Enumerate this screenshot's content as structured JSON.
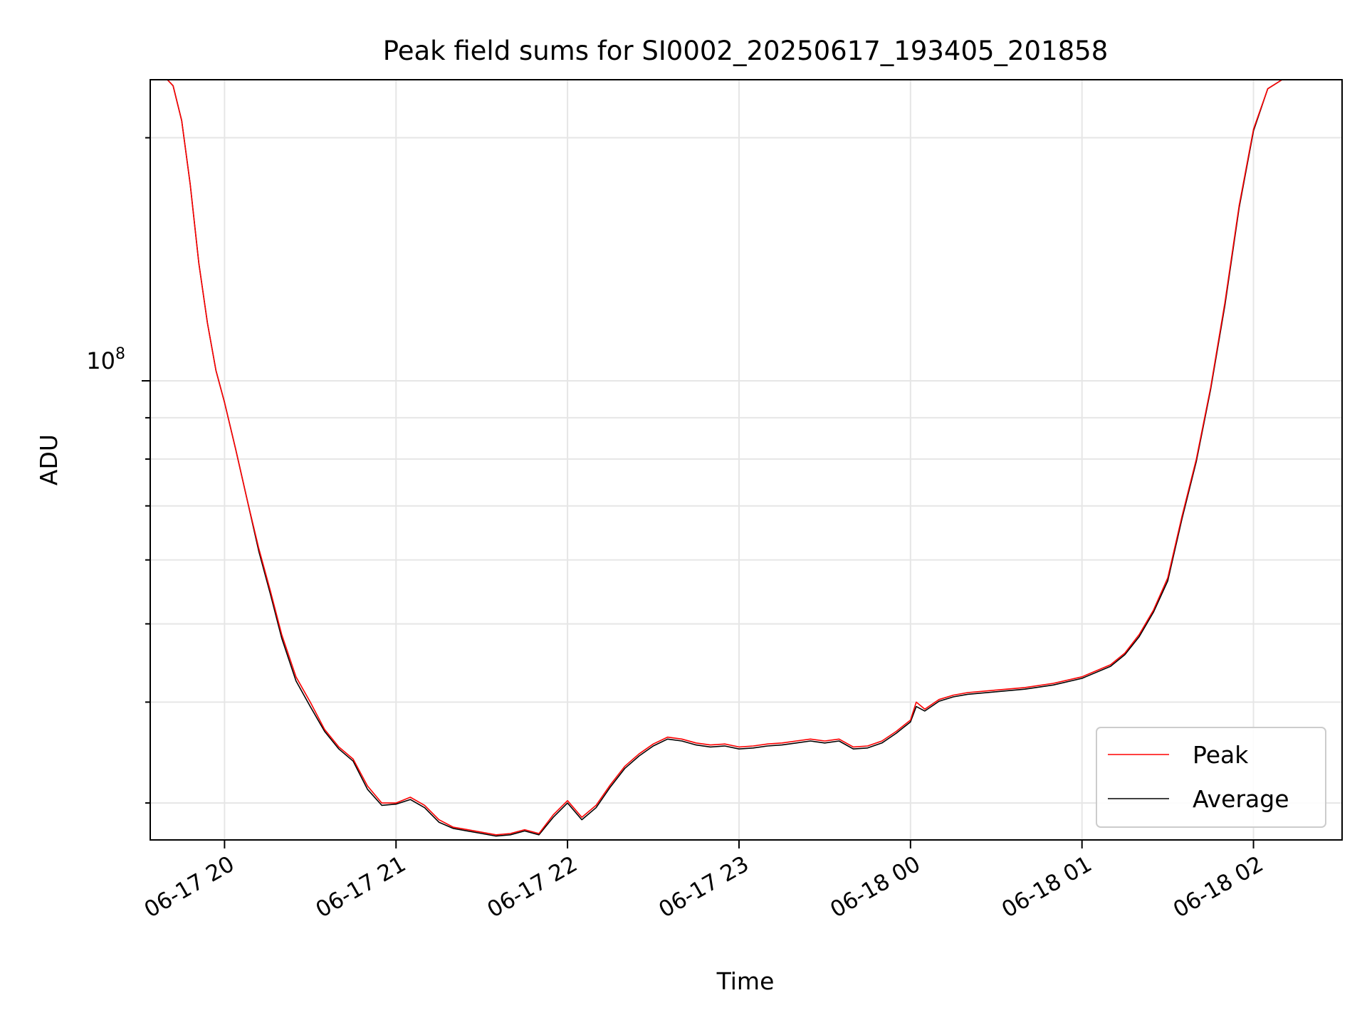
{
  "chart_data": {
    "type": "line",
    "title": "Peak field sums for SI0002_20250617_193405_201858",
    "xlabel": "Time",
    "ylabel": "ADU",
    "y_scale": "log",
    "y_tick_label": {
      "base": "10",
      "exp": "8"
    },
    "x_tick_labels": [
      "06-17 20",
      "06-17 21",
      "06-17 22",
      "06-17 23",
      "06-18 00",
      "06-18 01",
      "06-18 02"
    ],
    "x_tick_times": [
      "2025-06-17T20:00",
      "2025-06-17T21:00",
      "2025-06-17T22:00",
      "2025-06-17T23:00",
      "2025-06-18T00:00",
      "2025-06-18T01:00",
      "2025-06-18T02:00"
    ],
    "xlim": [
      "2025-06-17T19:34",
      "2025-06-18T02:31"
    ],
    "ylim": [
      27000000,
      236000000
    ],
    "grid": true,
    "legend_position": "lower right",
    "series": [
      {
        "name": "Peak",
        "color": "#ff0000",
        "points": [
          [
            "2025-06-17T19:34",
            236000000
          ],
          [
            "2025-06-17T19:40",
            236000000
          ],
          [
            "2025-06-17T19:42",
            232000000
          ],
          [
            "2025-06-17T19:45",
            210000000
          ],
          [
            "2025-06-17T19:48",
            175000000
          ],
          [
            "2025-06-17T19:51",
            140000000
          ],
          [
            "2025-06-17T19:54",
            118000000
          ],
          [
            "2025-06-17T19:57",
            103000000
          ],
          [
            "2025-06-17T20:00",
            94000000
          ],
          [
            "2025-06-17T20:04",
            82000000
          ],
          [
            "2025-06-17T20:08",
            71000000
          ],
          [
            "2025-06-17T20:12",
            62000000
          ],
          [
            "2025-06-17T20:16",
            55000000
          ],
          [
            "2025-06-17T20:20",
            48500000
          ],
          [
            "2025-06-17T20:25",
            43000000
          ],
          [
            "2025-06-17T20:30",
            40000000
          ],
          [
            "2025-06-17T20:35",
            37000000
          ],
          [
            "2025-06-17T20:40",
            35200000
          ],
          [
            "2025-06-17T20:45",
            34000000
          ],
          [
            "2025-06-17T20:50",
            31500000
          ],
          [
            "2025-06-17T20:55",
            30000000
          ],
          [
            "2025-06-17T21:00",
            30000000
          ],
          [
            "2025-06-17T21:05",
            30500000
          ],
          [
            "2025-06-17T21:10",
            29800000
          ],
          [
            "2025-06-17T21:15",
            28600000
          ],
          [
            "2025-06-17T21:20",
            28000000
          ],
          [
            "2025-06-17T21:25",
            27800000
          ],
          [
            "2025-06-17T21:30",
            27600000
          ],
          [
            "2025-06-17T21:35",
            27400000
          ],
          [
            "2025-06-17T21:40",
            27500000
          ],
          [
            "2025-06-17T21:45",
            27800000
          ],
          [
            "2025-06-17T21:50",
            27500000
          ],
          [
            "2025-06-17T21:55",
            29000000
          ],
          [
            "2025-06-17T22:00",
            30200000
          ],
          [
            "2025-06-17T22:05",
            28800000
          ],
          [
            "2025-06-17T22:10",
            29800000
          ],
          [
            "2025-06-17T22:15",
            31600000
          ],
          [
            "2025-06-17T22:20",
            33300000
          ],
          [
            "2025-06-17T22:25",
            34500000
          ],
          [
            "2025-06-17T22:30",
            35500000
          ],
          [
            "2025-06-17T22:35",
            36200000
          ],
          [
            "2025-06-17T22:40",
            36000000
          ],
          [
            "2025-06-17T22:45",
            35600000
          ],
          [
            "2025-06-17T22:50",
            35400000
          ],
          [
            "2025-06-17T22:55",
            35500000
          ],
          [
            "2025-06-17T23:00",
            35200000
          ],
          [
            "2025-06-17T23:05",
            35300000
          ],
          [
            "2025-06-17T23:10",
            35500000
          ],
          [
            "2025-06-17T23:15",
            35600000
          ],
          [
            "2025-06-17T23:20",
            35800000
          ],
          [
            "2025-06-17T23:25",
            36000000
          ],
          [
            "2025-06-17T23:30",
            35800000
          ],
          [
            "2025-06-17T23:35",
            36000000
          ],
          [
            "2025-06-17T23:40",
            35200000
          ],
          [
            "2025-06-17T23:45",
            35300000
          ],
          [
            "2025-06-17T23:50",
            35800000
          ],
          [
            "2025-06-17T23:55",
            36800000
          ],
          [
            "2025-06-18T00:00",
            38000000
          ],
          [
            "2025-06-18T00:02",
            40000000
          ],
          [
            "2025-06-18T00:05",
            39200000
          ],
          [
            "2025-06-18T00:10",
            40300000
          ],
          [
            "2025-06-18T00:15",
            40800000
          ],
          [
            "2025-06-18T00:20",
            41100000
          ],
          [
            "2025-06-18T00:30",
            41400000
          ],
          [
            "2025-06-18T00:40",
            41700000
          ],
          [
            "2025-06-18T00:50",
            42200000
          ],
          [
            "2025-06-18T01:00",
            43000000
          ],
          [
            "2025-06-18T01:10",
            44500000
          ],
          [
            "2025-06-18T01:15",
            46000000
          ],
          [
            "2025-06-18T01:20",
            48500000
          ],
          [
            "2025-06-18T01:25",
            52000000
          ],
          [
            "2025-06-18T01:30",
            57000000
          ],
          [
            "2025-06-18T01:35",
            68000000
          ],
          [
            "2025-06-18T01:40",
            80000000
          ],
          [
            "2025-06-18T01:45",
            98000000
          ],
          [
            "2025-06-18T01:50",
            125000000
          ],
          [
            "2025-06-18T01:55",
            165000000
          ],
          [
            "2025-06-18T02:00",
            205000000
          ],
          [
            "2025-06-18T02:05",
            230000000
          ],
          [
            "2025-06-18T02:10",
            236000000
          ],
          [
            "2025-06-18T02:31",
            236000000
          ]
        ]
      },
      {
        "name": "Average",
        "color": "#000000",
        "points": [
          [
            "2025-06-17T19:34",
            236000000
          ],
          [
            "2025-06-17T19:40",
            236000000
          ],
          [
            "2025-06-17T19:42",
            232000000
          ],
          [
            "2025-06-17T19:45",
            210000000
          ],
          [
            "2025-06-17T19:48",
            175000000
          ],
          [
            "2025-06-17T19:51",
            140000000
          ],
          [
            "2025-06-17T19:54",
            118000000
          ],
          [
            "2025-06-17T19:57",
            103000000
          ],
          [
            "2025-06-17T20:00",
            94000000
          ],
          [
            "2025-06-17T20:04",
            82000000
          ],
          [
            "2025-06-17T20:08",
            71000000
          ],
          [
            "2025-06-17T20:12",
            61500000
          ],
          [
            "2025-06-17T20:16",
            54500000
          ],
          [
            "2025-06-17T20:20",
            48000000
          ],
          [
            "2025-06-17T20:25",
            42500000
          ],
          [
            "2025-06-17T20:30",
            39500000
          ],
          [
            "2025-06-17T20:35",
            36800000
          ],
          [
            "2025-06-17T20:40",
            35000000
          ],
          [
            "2025-06-17T20:45",
            33800000
          ],
          [
            "2025-06-17T20:50",
            31200000
          ],
          [
            "2025-06-17T20:55",
            29800000
          ],
          [
            "2025-06-17T21:00",
            29900000
          ],
          [
            "2025-06-17T21:05",
            30300000
          ],
          [
            "2025-06-17T21:10",
            29600000
          ],
          [
            "2025-06-17T21:15",
            28400000
          ],
          [
            "2025-06-17T21:20",
            27900000
          ],
          [
            "2025-06-17T21:25",
            27700000
          ],
          [
            "2025-06-17T21:30",
            27500000
          ],
          [
            "2025-06-17T21:35",
            27300000
          ],
          [
            "2025-06-17T21:40",
            27400000
          ],
          [
            "2025-06-17T21:45",
            27700000
          ],
          [
            "2025-06-17T21:50",
            27400000
          ],
          [
            "2025-06-17T21:55",
            28800000
          ],
          [
            "2025-06-17T22:00",
            30000000
          ],
          [
            "2025-06-17T22:05",
            28600000
          ],
          [
            "2025-06-17T22:10",
            29600000
          ],
          [
            "2025-06-17T22:15",
            31400000
          ],
          [
            "2025-06-17T22:20",
            33100000
          ],
          [
            "2025-06-17T22:25",
            34300000
          ],
          [
            "2025-06-17T22:30",
            35300000
          ],
          [
            "2025-06-17T22:35",
            36000000
          ],
          [
            "2025-06-17T22:40",
            35800000
          ],
          [
            "2025-06-17T22:45",
            35400000
          ],
          [
            "2025-06-17T22:50",
            35200000
          ],
          [
            "2025-06-17T22:55",
            35300000
          ],
          [
            "2025-06-17T23:00",
            35000000
          ],
          [
            "2025-06-17T23:05",
            35100000
          ],
          [
            "2025-06-17T23:10",
            35300000
          ],
          [
            "2025-06-17T23:15",
            35400000
          ],
          [
            "2025-06-17T23:20",
            35600000
          ],
          [
            "2025-06-17T23:25",
            35800000
          ],
          [
            "2025-06-17T23:30",
            35600000
          ],
          [
            "2025-06-17T23:35",
            35800000
          ],
          [
            "2025-06-17T23:40",
            35000000
          ],
          [
            "2025-06-17T23:45",
            35100000
          ],
          [
            "2025-06-17T23:50",
            35600000
          ],
          [
            "2025-06-17T23:55",
            36600000
          ],
          [
            "2025-06-18T00:00",
            37800000
          ],
          [
            "2025-06-18T00:02",
            39500000
          ],
          [
            "2025-06-18T00:05",
            39000000
          ],
          [
            "2025-06-18T00:10",
            40100000
          ],
          [
            "2025-06-18T00:15",
            40600000
          ],
          [
            "2025-06-18T00:20",
            40900000
          ],
          [
            "2025-06-18T00:30",
            41200000
          ],
          [
            "2025-06-18T00:40",
            41500000
          ],
          [
            "2025-06-18T00:50",
            42000000
          ],
          [
            "2025-06-18T01:00",
            42800000
          ],
          [
            "2025-06-18T01:10",
            44300000
          ],
          [
            "2025-06-18T01:15",
            45800000
          ],
          [
            "2025-06-18T01:20",
            48200000
          ],
          [
            "2025-06-18T01:25",
            51700000
          ],
          [
            "2025-06-18T01:30",
            56500000
          ],
          [
            "2025-06-18T01:35",
            67500000
          ],
          [
            "2025-06-18T01:40",
            79500000
          ],
          [
            "2025-06-18T01:45",
            97500000
          ],
          [
            "2025-06-18T01:50",
            124000000
          ],
          [
            "2025-06-18T01:55",
            164000000
          ],
          [
            "2025-06-18T02:00",
            204000000
          ],
          [
            "2025-06-18T02:05",
            230000000
          ],
          [
            "2025-06-18T02:10",
            236000000
          ],
          [
            "2025-06-18T02:31",
            236000000
          ]
        ]
      }
    ]
  }
}
